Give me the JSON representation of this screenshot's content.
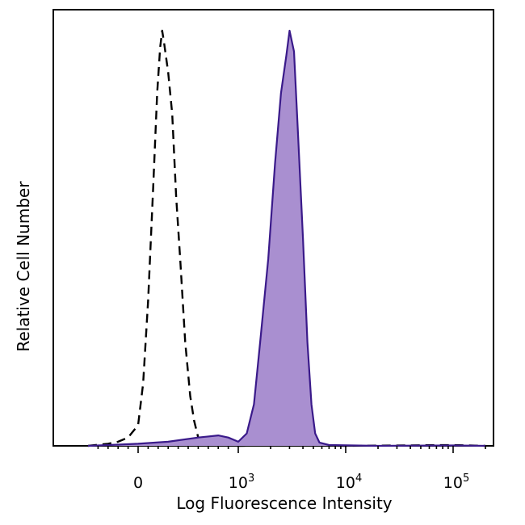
{
  "chart_data": {
    "type": "area",
    "title": "",
    "xlabel": "Log Fluorescence Intensity",
    "ylabel": "Relative Cell Number",
    "x_scale": "biexponential",
    "xlim": [
      -500,
      200000
    ],
    "ylim": [
      0,
      1
    ],
    "grid": false,
    "legend": "none",
    "x_tick_labels": [
      {
        "value": 0,
        "base": "0",
        "exp": ""
      },
      {
        "value": 1000,
        "base": "10",
        "exp": "3"
      },
      {
        "value": 10000,
        "base": "10",
        "exp": "4"
      },
      {
        "value": 100000,
        "base": "10",
        "exp": "5"
      }
    ],
    "series": [
      {
        "style": "dashed",
        "stroke": "#000000",
        "fill": "none",
        "points": [
          [
            -500,
            0
          ],
          [
            -300,
            0.005
          ],
          [
            -200,
            0.01
          ],
          [
            -100,
            0.02
          ],
          [
            0,
            0.05
          ],
          [
            50,
            0.15
          ],
          [
            100,
            0.35
          ],
          [
            150,
            0.62
          ],
          [
            190,
            0.85
          ],
          [
            220,
            0.96
          ],
          [
            240,
            1.0
          ],
          [
            260,
            0.97
          ],
          [
            300,
            0.9
          ],
          [
            340,
            0.8
          ],
          [
            380,
            0.6
          ],
          [
            420,
            0.45
          ],
          [
            470,
            0.25
          ],
          [
            520,
            0.12
          ],
          [
            560,
            0.06
          ],
          [
            600,
            0.02
          ],
          [
            700,
            0.005
          ],
          [
            1000,
            0.0
          ],
          [
            3000,
            0.002
          ],
          [
            10000,
            0.0
          ],
          [
            100000,
            0.002
          ],
          [
            200000,
            0.0
          ]
        ]
      },
      {
        "style": "solid",
        "stroke": "#3a1a8a",
        "fill": "#a98fd0",
        "points": [
          [
            -500,
            0.0
          ],
          [
            -200,
            0.003
          ],
          [
            0,
            0.005
          ],
          [
            300,
            0.01
          ],
          [
            600,
            0.02
          ],
          [
            800,
            0.025
          ],
          [
            900,
            0.02
          ],
          [
            1000,
            0.01
          ],
          [
            1200,
            0.03
          ],
          [
            1400,
            0.1
          ],
          [
            1600,
            0.25
          ],
          [
            1900,
            0.45
          ],
          [
            2200,
            0.68
          ],
          [
            2500,
            0.85
          ],
          [
            2800,
            0.94
          ],
          [
            3000,
            1.0
          ],
          [
            3300,
            0.95
          ],
          [
            3600,
            0.75
          ],
          [
            4000,
            0.5
          ],
          [
            4400,
            0.25
          ],
          [
            4800,
            0.1
          ],
          [
            5200,
            0.03
          ],
          [
            5700,
            0.008
          ],
          [
            7000,
            0.002
          ],
          [
            20000,
            0.0
          ],
          [
            100000,
            0.001
          ],
          [
            200000,
            0.0
          ]
        ]
      }
    ]
  }
}
